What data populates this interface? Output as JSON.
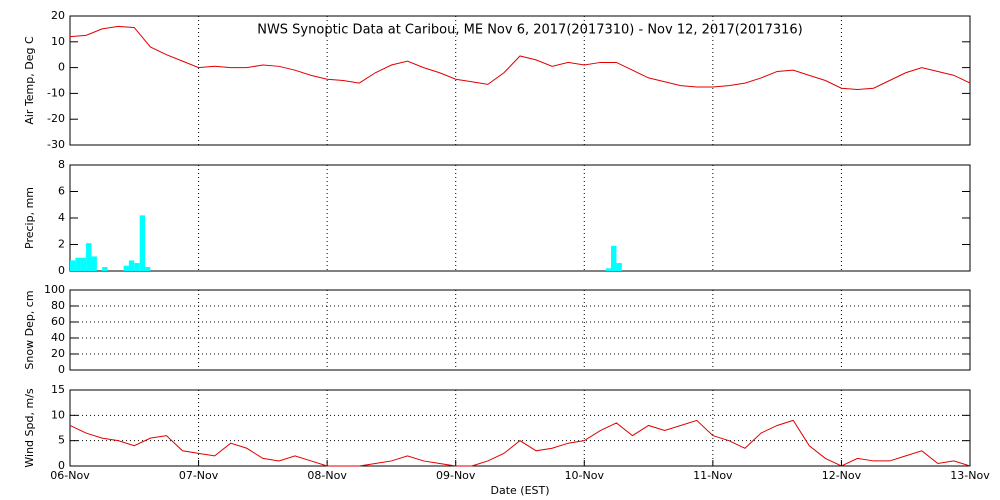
{
  "chart_data": [
    {
      "type": "line",
      "title": "NWS Synoptic Data at Caribou, ME   Nov  6, 2017(2017310) - Nov 12, 2017(2017316)",
      "ylabel": "Air Temp, Deg C",
      "color": "#e00000",
      "ylim": [
        -30,
        20
      ],
      "yticks": [
        -30,
        -20,
        -10,
        0,
        10,
        20
      ],
      "grid": true,
      "ygrid": false,
      "x": [
        0,
        0.125,
        0.25,
        0.375,
        0.5,
        0.625,
        0.75,
        0.875,
        1,
        1.125,
        1.25,
        1.375,
        1.5,
        1.625,
        1.75,
        1.875,
        2,
        2.125,
        2.25,
        2.375,
        2.5,
        2.625,
        2.75,
        2.875,
        3,
        3.125,
        3.25,
        3.375,
        3.5,
        3.625,
        3.75,
        3.875,
        4,
        4.125,
        4.25,
        4.375,
        4.5,
        4.625,
        4.75,
        4.875,
        5,
        5.125,
        5.25,
        5.375,
        5.5,
        5.625,
        5.75,
        5.875,
        6,
        6.125,
        6.25,
        6.375,
        6.5,
        6.625,
        6.75,
        6.875,
        7
      ],
      "values": [
        12,
        12.5,
        15,
        16,
        15.5,
        8,
        5,
        2.5,
        0,
        0.5,
        0,
        0,
        1,
        0.5,
        -1,
        -3,
        -4.5,
        -5,
        -6,
        -2,
        1,
        2.5,
        0,
        -2,
        -4.5,
        -5.5,
        -6.5,
        -2,
        4.5,
        3,
        0.5,
        2,
        1,
        2,
        2,
        -1,
        -4,
        -5.5,
        -7,
        -7.5,
        -7.5,
        -7,
        -6,
        -4,
        -1.5,
        -1,
        -3,
        -5,
        -8,
        -8.5,
        -8,
        -5,
        -2,
        0,
        -1.5,
        -3,
        -6
      ]
    },
    {
      "type": "bar",
      "ylabel": "Precip, mm",
      "color": "#00ffff",
      "ylim": [
        0,
        8
      ],
      "yticks": [
        0,
        2,
        4,
        6,
        8
      ],
      "grid": true,
      "ygrid": false,
      "x": [
        0,
        0.042,
        0.083,
        0.125,
        0.167,
        0.25,
        0.417,
        0.458,
        0.5,
        0.542,
        0.583,
        4.167,
        4.208,
        4.25
      ],
      "values": [
        0.8,
        1.0,
        1.0,
        2.1,
        1.1,
        0.3,
        0.4,
        0.8,
        0.6,
        4.2,
        0.3,
        0.2,
        1.9,
        0.6
      ]
    },
    {
      "type": "line",
      "ylabel": "Snow Dep, cm",
      "color": "#e00000",
      "ylim": [
        0,
        100
      ],
      "yticks": [
        0,
        20,
        40,
        60,
        80,
        100
      ],
      "grid": true,
      "ygrid": true,
      "x": [],
      "values": []
    },
    {
      "type": "line",
      "ylabel": "Wind Spd, m/s",
      "xlabel": "Date (EST)",
      "color": "#e00000",
      "ylim": [
        0,
        15
      ],
      "yticks": [
        0,
        5,
        10,
        15
      ],
      "grid": true,
      "ygrid": true,
      "xlim": [
        0,
        7
      ],
      "xticks": [
        {
          "value": 0,
          "label": "06-Nov"
        },
        {
          "value": 1,
          "label": "07-Nov"
        },
        {
          "value": 2,
          "label": "08-Nov"
        },
        {
          "value": 3,
          "label": "09-Nov"
        },
        {
          "value": 4,
          "label": "10-Nov"
        },
        {
          "value": 5,
          "label": "11-Nov"
        },
        {
          "value": 6,
          "label": "12-Nov"
        },
        {
          "value": 7,
          "label": "13-Nov"
        }
      ],
      "x": [
        0,
        0.125,
        0.25,
        0.375,
        0.5,
        0.625,
        0.75,
        0.875,
        1,
        1.125,
        1.25,
        1.375,
        1.5,
        1.625,
        1.75,
        1.875,
        2,
        2.125,
        2.25,
        2.375,
        2.5,
        2.625,
        2.75,
        2.875,
        3,
        3.125,
        3.25,
        3.375,
        3.5,
        3.625,
        3.75,
        3.875,
        4,
        4.125,
        4.25,
        4.375,
        4.5,
        4.625,
        4.75,
        4.875,
        5,
        5.125,
        5.25,
        5.375,
        5.5,
        5.625,
        5.75,
        5.875,
        6,
        6.125,
        6.25,
        6.375,
        6.5,
        6.625,
        6.75,
        6.875,
        7
      ],
      "values": [
        8,
        6.5,
        5.5,
        5,
        4,
        5.5,
        6,
        3,
        2.5,
        2,
        4.5,
        3.5,
        1.5,
        1,
        2,
        1,
        0,
        0,
        0,
        0.5,
        1,
        2,
        1,
        0.5,
        0,
        0,
        1,
        2.5,
        5,
        3,
        3.5,
        4.5,
        5,
        7,
        8.5,
        6,
        8,
        7,
        8,
        9,
        6,
        5,
        3.5,
        6.5,
        8,
        9,
        4,
        1.5,
        0,
        1.5,
        1,
        1,
        2,
        3,
        0.5,
        1,
        0
      ]
    }
  ]
}
